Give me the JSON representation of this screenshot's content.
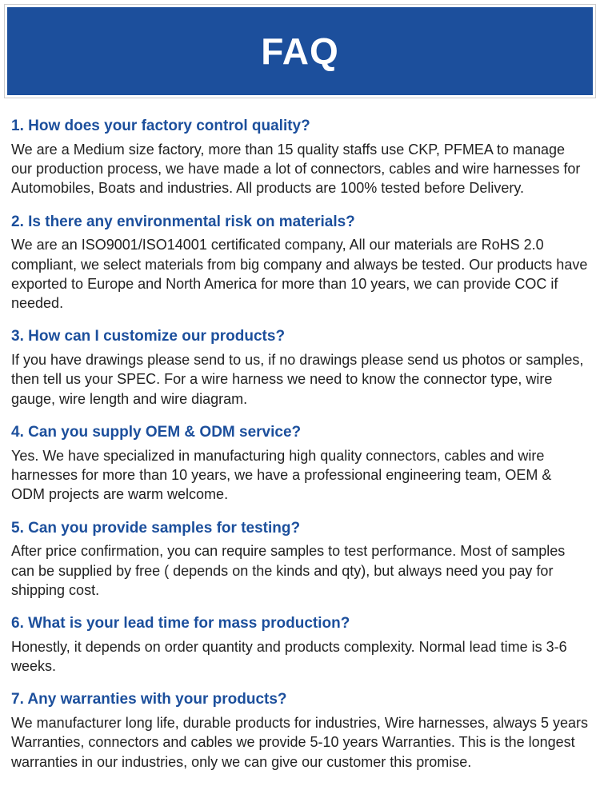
{
  "header": {
    "title": "FAQ"
  },
  "colors": {
    "header_bg": "#1c4f9c",
    "header_text": "#ffffff",
    "question_color": "#1c4f9c",
    "answer_color": "#222222",
    "page_bg": "#ffffff"
  },
  "typography": {
    "header_fontsize": 46,
    "question_fontsize": 19,
    "answer_fontsize": 18
  },
  "faq": [
    {
      "question": "1. How does your factory control quality?",
      "answer": "We are a Medium size factory, more than 15 quality staffs use CKP, PFMEA to manage our production process, we have made a lot of connectors, cables and wire harnesses for Automobiles, Boats and industries. All products are 100% tested before Delivery."
    },
    {
      "question": "2. Is there any environmental risk on materials?",
      "answer": "We are an ISO9001/ISO14001 certificated company, All our materials are RoHS 2.0 compliant, we select materials from big company and always be tested. Our products have exported to Europe and North America for more than 10 years, we can provide COC if needed."
    },
    {
      "question": "3. How can I customize our products?",
      "answer": "If you have drawings please send to us, if no drawings please send us photos or samples, then tell us your SPEC. For a wire harness we need to know the connector type, wire gauge, wire length and wire diagram."
    },
    {
      "question": "4. Can you supply OEM & ODM service?",
      "answer": "Yes. We have specialized in manufacturing high quality connectors, cables and wire harnesses for more than 10 years, we have a professional engineering team, OEM & ODM projects are warm welcome."
    },
    {
      "question": "5. Can you provide samples for testing?",
      "answer": "After price confirmation, you can require samples to test performance. Most of samples can be supplied by free ( depends on the kinds and qty), but always need you pay for shipping cost."
    },
    {
      "question": "6. What is your lead time for mass production?",
      "answer": "Honestly, it depends on order quantity and products complexity. Normal lead time is 3-6 weeks."
    },
    {
      "question": "7. Any warranties with your products?",
      "answer": "We manufacturer long life, durable products for industries, Wire harnesses, always 5 years Warranties, connectors and cables we provide 5-10 years Warranties. This is the longest warranties in our industries, only we can give our customer this promise."
    }
  ]
}
